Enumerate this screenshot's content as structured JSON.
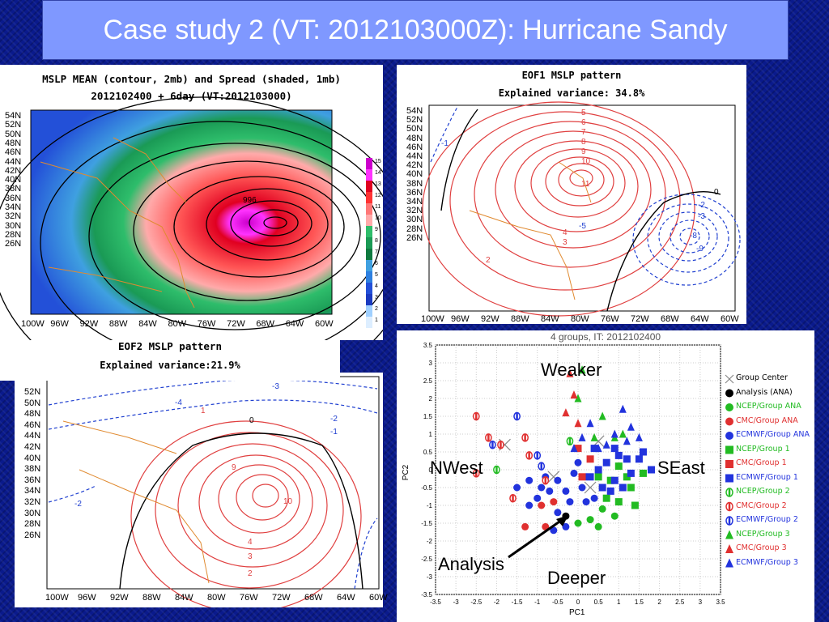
{
  "title": "Case study 2 (VT: 2012103000Z):  Hurricane Sandy",
  "panel_mean": {
    "line1": "MSLP MEAN (contour, 2mb) and Spread (shaded, 1mb)",
    "line2": "2012102400 + 6day (VT:2012103000)",
    "lat_labels": [
      "54N",
      "52N",
      "50N",
      "48N",
      "46N",
      "44N",
      "42N",
      "40N",
      "38N",
      "36N",
      "34N",
      "32N",
      "30N",
      "28N",
      "26N"
    ],
    "lon_labels": [
      "100W",
      "96W",
      "92W",
      "88W",
      "84W",
      "80W",
      "76W",
      "72W",
      "68W",
      "64W",
      "60W"
    ],
    "colorbar_labels": [
      "15",
      "14",
      "13",
      "12",
      "11",
      "10",
      "9",
      "8",
      "7",
      "6",
      "5",
      "4",
      "3",
      "2",
      "1"
    ],
    "contour_label": "996"
  },
  "panel_eof1": {
    "line1": "EOF1 MSLP pattern",
    "line2": "Explained variance: 34.8%",
    "lat_labels": [
      "54N",
      "52N",
      "50N",
      "48N",
      "46N",
      "44N",
      "42N",
      "40N",
      "38N",
      "36N",
      "34N",
      "32N",
      "30N",
      "28N",
      "26N"
    ],
    "lon_labels": [
      "100W",
      "96W",
      "92W",
      "88W",
      "84W",
      "80W",
      "76W",
      "72W",
      "68W",
      "64W",
      "60W"
    ],
    "contour_labels": [
      "5",
      "6",
      "7",
      "8",
      "9",
      "10",
      "11",
      "4",
      "3",
      "2",
      "0",
      "-2",
      "-3",
      "-5",
      "-9",
      "-8",
      "-1"
    ]
  },
  "panel_eof2": {
    "line1": "EOF2 MSLP pattern",
    "line2": "Explained variance:21.9%",
    "lat_labels": [
      "52N",
      "50N",
      "48N",
      "46N",
      "44N",
      "42N",
      "40N",
      "38N",
      "36N",
      "34N",
      "32N",
      "30N",
      "28N",
      "26N"
    ],
    "lon_labels": [
      "100W",
      "96W",
      "92W",
      "88W",
      "84W",
      "80W",
      "76W",
      "72W",
      "68W",
      "64W",
      "60W"
    ],
    "contour_labels": [
      "-4",
      "-3",
      "0",
      "-2",
      "-1",
      "-2",
      "10",
      "9",
      "4",
      "3",
      "2",
      "1"
    ]
  },
  "scatter": {
    "title": "4  groups, IT: 2012102400",
    "xlabel": "PC1",
    "ylabel": "PC2",
    "x_ticks": [
      "-3.5",
      "-3",
      "-2.5",
      "-2",
      "-1.5",
      "-1",
      "-0.5",
      "0",
      "0.5",
      "1",
      "1.5",
      "2",
      "2.5",
      "3",
      "3.5"
    ],
    "y_ticks": [
      "3.5",
      "3",
      "2.5",
      "2",
      "1.5",
      "1",
      "0.5",
      "0",
      "-0.5",
      "-1",
      "-1.5",
      "-2",
      "-2.5",
      "-3",
      "-3.5"
    ],
    "annotations": {
      "top": "Weaker",
      "left": "NWest",
      "right": "SEast",
      "bottom": "Deeper",
      "arrow": "Analysis"
    },
    "legend": [
      {
        "label": "Group Center",
        "color": "#888888",
        "marker": "x"
      },
      {
        "label": "Analysis (ANA)",
        "color": "#000000",
        "marker": "dot"
      },
      {
        "label": "NCEP/Group ANA",
        "color": "#22bb22",
        "marker": "dot"
      },
      {
        "label": "CMC/Group ANA",
        "color": "#e03030",
        "marker": "dot"
      },
      {
        "label": "ECMWF/Group ANA",
        "color": "#2233dd",
        "marker": "dot"
      },
      {
        "label": "NCEP/Group 1",
        "color": "#22bb22",
        "marker": "square"
      },
      {
        "label": "CMC/Group 1",
        "color": "#e03030",
        "marker": "square"
      },
      {
        "label": "ECMWF/Group 1",
        "color": "#2233dd",
        "marker": "square"
      },
      {
        "label": "NCEP/Group 2",
        "color": "#22bb22",
        "marker": "half"
      },
      {
        "label": "CMC/Group 2",
        "color": "#e03030",
        "marker": "half"
      },
      {
        "label": "ECMWF/Group 2",
        "color": "#2233dd",
        "marker": "half"
      },
      {
        "label": "NCEP/Group 3",
        "color": "#22bb22",
        "marker": "triangle"
      },
      {
        "label": "CMC/Group 3",
        "color": "#e03030",
        "marker": "triangle"
      },
      {
        "label": "ECMWF/Group 3",
        "color": "#2233dd",
        "marker": "triangle"
      }
    ]
  },
  "chart_data": {
    "type": "scatter",
    "title": "4  groups, IT: 2012102400",
    "xlabel": "PC1",
    "ylabel": "PC2",
    "xlim": [
      -3.5,
      3.5
    ],
    "ylim": [
      -3.5,
      3.5
    ],
    "legend_position": "right",
    "series": [
      {
        "name": "Group Center",
        "marker": "x",
        "color": "#888888",
        "points": [
          [
            -1.8,
            0.7
          ],
          [
            -0.6,
            -0.2
          ],
          [
            0.3,
            -0.5
          ],
          [
            0.5,
            0.8
          ]
        ]
      },
      {
        "name": "Analysis (ANA)",
        "marker": "dot",
        "color": "#000000",
        "points": [
          [
            -0.3,
            -1.3
          ]
        ]
      },
      {
        "name": "NCEP/Group ANA",
        "marker": "dot",
        "color": "#22bb22",
        "points": [
          [
            0.0,
            -1.5
          ],
          [
            0.3,
            -1.4
          ],
          [
            0.6,
            -1.1
          ],
          [
            0.9,
            -1.3
          ],
          [
            0.5,
            -1.6
          ]
        ]
      },
      {
        "name": "CMC/Group ANA",
        "marker": "dot",
        "color": "#e03030",
        "points": [
          [
            -0.9,
            -1.0
          ],
          [
            -1.3,
            -1.6
          ],
          [
            -0.8,
            -1.6
          ],
          [
            -0.6,
            -0.9
          ]
        ]
      },
      {
        "name": "ECMWF/Group ANA",
        "marker": "dot",
        "color": "#2233dd",
        "points": [
          [
            -1.5,
            -0.5
          ],
          [
            -1.2,
            -0.3
          ],
          [
            -1.0,
            -0.8
          ],
          [
            -0.9,
            -0.5
          ],
          [
            -0.7,
            -0.6
          ],
          [
            -0.5,
            -0.3
          ],
          [
            -0.3,
            -0.6
          ],
          [
            -0.2,
            -0.9
          ],
          [
            -0.5,
            -1.2
          ],
          [
            -0.3,
            -1.6
          ],
          [
            -0.6,
            -1.7
          ],
          [
            0.1,
            -0.5
          ],
          [
            0.2,
            -0.9
          ],
          [
            -0.1,
            -0.1
          ],
          [
            0.4,
            -0.8
          ],
          [
            -1.2,
            -1.0
          ],
          [
            -0.8,
            -0.2
          ],
          [
            0.0,
            0.2
          ],
          [
            0.2,
            -0.2
          ]
        ]
      },
      {
        "name": "NCEP/Group 1",
        "marker": "square",
        "color": "#22bb22",
        "points": [
          [
            0.8,
            -0.3
          ],
          [
            1.0,
            0.1
          ],
          [
            1.3,
            -0.5
          ],
          [
            1.6,
            -0.1
          ],
          [
            1.0,
            -0.9
          ],
          [
            0.7,
            -0.8
          ],
          [
            1.4,
            -1.0
          ],
          [
            0.5,
            -0.2
          ],
          [
            1.2,
            -0.2
          ]
        ]
      },
      {
        "name": "CMC/Group 1",
        "marker": "square",
        "color": "#e03030",
        "points": [
          [
            0.0,
            0.6
          ],
          [
            0.3,
            0.3
          ],
          [
            0.1,
            -0.2
          ]
        ]
      },
      {
        "name": "ECMWF/Group 1",
        "marker": "square",
        "color": "#2233dd",
        "points": [
          [
            0.4,
            0.6
          ],
          [
            0.7,
            0.2
          ],
          [
            0.9,
            0.6
          ],
          [
            1.2,
            0.3
          ],
          [
            1.5,
            0.3
          ],
          [
            1.8,
            0.0
          ],
          [
            0.9,
            -0.3
          ],
          [
            0.6,
            -0.5
          ],
          [
            1.1,
            -0.5
          ],
          [
            1.3,
            -0.1
          ],
          [
            1.6,
            0.5
          ],
          [
            0.3,
            -0.2
          ],
          [
            0.5,
            0.0
          ],
          [
            0.8,
            -0.6
          ],
          [
            1.0,
            0.4
          ]
        ]
      },
      {
        "name": "NCEP/Group 2",
        "marker": "half",
        "color": "#22bb22",
        "points": [
          [
            -2.0,
            0.0
          ],
          [
            -0.2,
            0.8
          ]
        ]
      },
      {
        "name": "CMC/Group 2",
        "marker": "half",
        "color": "#e03030",
        "points": [
          [
            -2.5,
            1.5
          ],
          [
            -2.5,
            -0.1
          ],
          [
            -2.2,
            0.9
          ],
          [
            -1.9,
            0.7
          ],
          [
            -1.3,
            0.9
          ],
          [
            -1.2,
            0.4
          ],
          [
            -0.8,
            -0.3
          ],
          [
            -1.6,
            -0.8
          ]
        ]
      },
      {
        "name": "ECMWF/Group 2",
        "marker": "half",
        "color": "#2233dd",
        "points": [
          [
            -2.1,
            0.7
          ],
          [
            -1.5,
            1.5
          ],
          [
            -1.0,
            0.4
          ],
          [
            -0.9,
            0.1
          ]
        ]
      },
      {
        "name": "NCEP/Group 3",
        "marker": "triangle",
        "color": "#22bb22",
        "points": [
          [
            0.1,
            2.8
          ],
          [
            0.0,
            2.0
          ],
          [
            0.6,
            1.5
          ],
          [
            0.9,
            0.9
          ],
          [
            1.1,
            1.0
          ],
          [
            0.4,
            0.9
          ]
        ]
      },
      {
        "name": "CMC/Group 3",
        "marker": "triangle",
        "color": "#e03030",
        "points": [
          [
            -0.2,
            2.7
          ],
          [
            -0.1,
            2.1
          ],
          [
            -0.3,
            1.6
          ],
          [
            0.0,
            1.3
          ]
        ]
      },
      {
        "name": "ECMWF/Group 3",
        "marker": "triangle",
        "color": "#2233dd",
        "points": [
          [
            1.1,
            1.7
          ],
          [
            1.3,
            1.2
          ],
          [
            0.9,
            1.0
          ],
          [
            1.5,
            0.9
          ],
          [
            0.7,
            0.7
          ],
          [
            0.3,
            1.3
          ],
          [
            0.1,
            0.9
          ],
          [
            1.2,
            0.8
          ],
          [
            0.5,
            0.6
          ],
          [
            -0.1,
            0.6
          ]
        ]
      }
    ]
  }
}
